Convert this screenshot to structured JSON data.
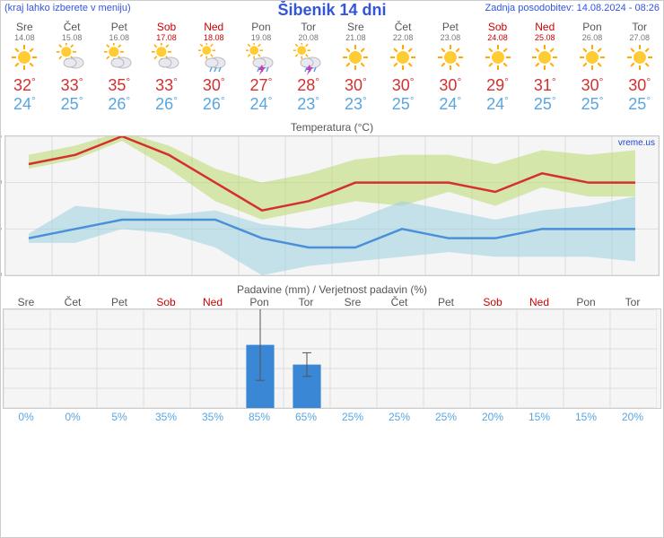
{
  "header": {
    "menu_note": "(kraj lahko izberete v meniju)",
    "title": "Šibenik 14 dni",
    "updated": "Zadnja posodobitev: 14.08.2024 - 08:26",
    "watermark": "vreme.us"
  },
  "temp_chart": {
    "title": "Temperatura (°C)",
    "ymin": 20,
    "ymax": 35,
    "ystep": 5,
    "high_line_color": "#d43030",
    "low_line_color": "#4a90d9",
    "high_band_color": "#b8d96a",
    "low_band_color": "#9ad0e0",
    "mean_high": [
      32,
      33,
      35,
      33,
      30,
      27,
      28,
      30,
      30,
      30,
      29,
      31,
      30,
      30
    ],
    "mean_low": [
      24,
      25,
      26,
      26,
      26,
      24,
      23,
      23,
      25,
      24,
      24,
      25,
      25,
      25
    ],
    "high_upper": [
      33,
      34,
      35.5,
      34,
      31.5,
      30,
      31,
      32.5,
      33,
      33,
      32,
      33.5,
      33,
      33.5
    ],
    "high_lower": [
      31.5,
      32.5,
      34.5,
      31.5,
      28,
      26,
      27,
      28,
      27.5,
      29,
      27.5,
      29.5,
      28.5,
      28.5
    ],
    "low_upper": [
      24.5,
      27.5,
      27,
      26.5,
      27,
      25.5,
      25,
      26,
      28,
      27,
      26,
      27,
      27.5,
      28.5
    ],
    "low_lower": [
      23.5,
      23.5,
      25,
      24.5,
      23,
      20,
      21,
      21.5,
      22,
      22.5,
      22,
      22,
      22,
      21.5
    ]
  },
  "precip_chart": {
    "title": "Padavine (mm) / Verjetnost padavin (%)",
    "ymin": 0,
    "ymax": 25,
    "ystep": 5,
    "bar_color": "#3a87d6",
    "whisker_color": "#555555",
    "bars": [
      0,
      0,
      0,
      0,
      0,
      16,
      11,
      0,
      0,
      0,
      0,
      0,
      0,
      0
    ],
    "whisk_lo": [
      0,
      0,
      0,
      0,
      0,
      7,
      8,
      0,
      0,
      0,
      0,
      0,
      0,
      0
    ],
    "whisk_hi": [
      0,
      0,
      0,
      0,
      0,
      26,
      14,
      0,
      0,
      0,
      0,
      0,
      0,
      0
    ],
    "prob": [
      "0%",
      "0%",
      "5%",
      "35%",
      "35%",
      "85%",
      "65%",
      "25%",
      "25%",
      "25%",
      "20%",
      "15%",
      "15%",
      "20%"
    ]
  },
  "days": [
    {
      "dow": "Sre",
      "date": "14.08",
      "weekend": false,
      "hi": "32",
      "lo": "24",
      "icon": "sun"
    },
    {
      "dow": "Čet",
      "date": "15.08",
      "weekend": false,
      "hi": "33",
      "lo": "25",
      "icon": "sun-cloud"
    },
    {
      "dow": "Pet",
      "date": "16.08",
      "weekend": false,
      "hi": "35",
      "lo": "26",
      "icon": "sun-cloud"
    },
    {
      "dow": "Sob",
      "date": "17.08",
      "weekend": true,
      "hi": "33",
      "lo": "26",
      "icon": "sun-cloud"
    },
    {
      "dow": "Ned",
      "date": "18.08",
      "weekend": true,
      "hi": "30",
      "lo": "26",
      "icon": "cloud-sun-rain"
    },
    {
      "dow": "Pon",
      "date": "19.08",
      "weekend": false,
      "hi": "27",
      "lo": "24",
      "icon": "storm"
    },
    {
      "dow": "Tor",
      "date": "20.08",
      "weekend": false,
      "hi": "28",
      "lo": "23",
      "icon": "storm"
    },
    {
      "dow": "Sre",
      "date": "21.08",
      "weekend": false,
      "hi": "30",
      "lo": "23",
      "icon": "sun"
    },
    {
      "dow": "Čet",
      "date": "22.08",
      "weekend": false,
      "hi": "30",
      "lo": "25",
      "icon": "sun"
    },
    {
      "dow": "Pet",
      "date": "23.08",
      "weekend": false,
      "hi": "30",
      "lo": "24",
      "icon": "sun"
    },
    {
      "dow": "Sob",
      "date": "24.08",
      "weekend": true,
      "hi": "29",
      "lo": "24",
      "icon": "sun"
    },
    {
      "dow": "Ned",
      "date": "25.08",
      "weekend": true,
      "hi": "31",
      "lo": "25",
      "icon": "sun"
    },
    {
      "dow": "Pon",
      "date": "26.08",
      "weekend": false,
      "hi": "30",
      "lo": "25",
      "icon": "sun"
    },
    {
      "dow": "Tor",
      "date": "27.08",
      "weekend": false,
      "hi": "30",
      "lo": "25",
      "icon": "sun"
    }
  ],
  "colors": {
    "weekend": "#cc0000",
    "high": "#d43030",
    "low": "#5aa5e0",
    "link": "#3355dd",
    "grid": "#dddddd",
    "box_bg": "#f5f5f5"
  }
}
